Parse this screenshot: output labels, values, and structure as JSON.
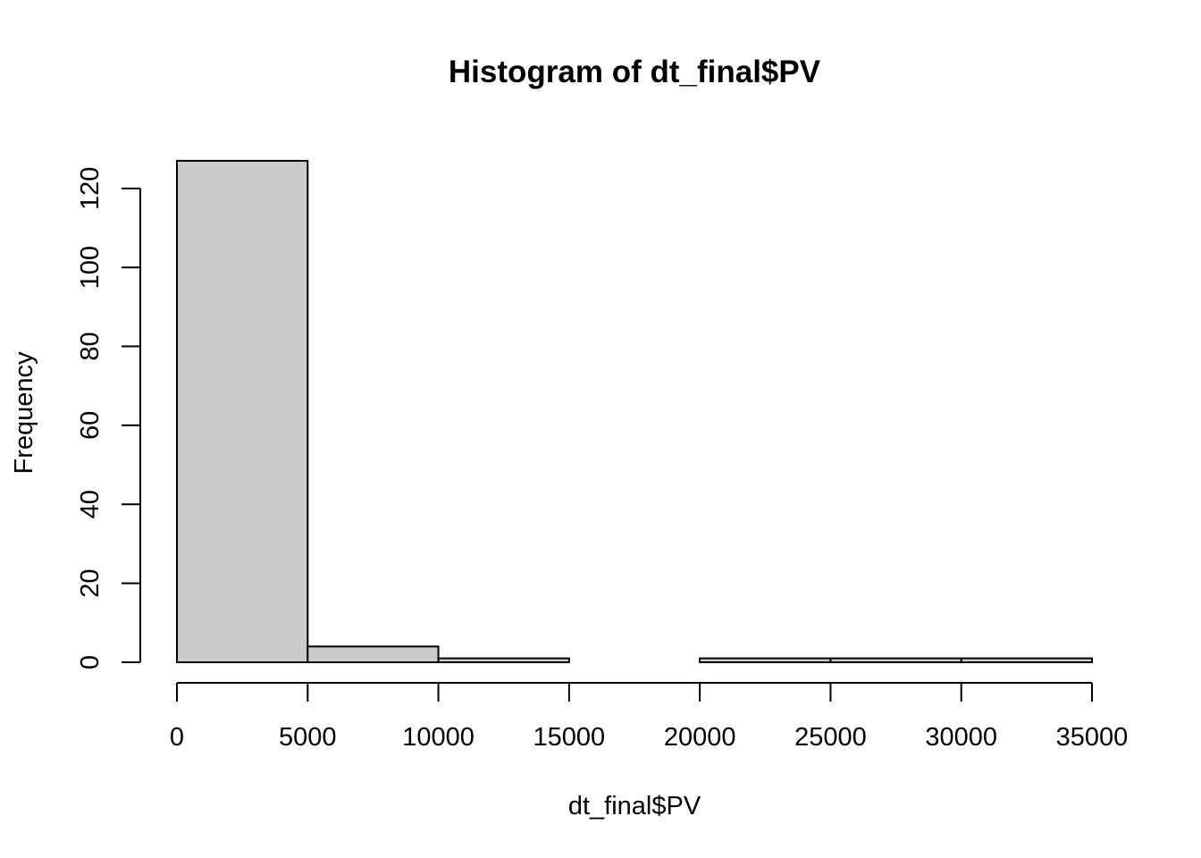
{
  "chart_data": {
    "type": "bar",
    "title": "Histogram of dt_final$PV",
    "xlabel": "dt_final$PV",
    "ylabel": "Frequency",
    "breaks": [
      0,
      5000,
      10000,
      15000,
      20000,
      25000,
      30000,
      35000
    ],
    "counts": [
      127,
      4,
      1,
      0,
      1,
      1,
      1
    ],
    "xlim": [
      0,
      35000
    ],
    "ylim": [
      0,
      127
    ],
    "x_ticks": [
      0,
      5000,
      10000,
      15000,
      20000,
      25000,
      30000,
      35000
    ],
    "y_ticks": [
      0,
      20,
      40,
      60,
      80,
      100,
      120
    ],
    "bar_color": "#cbcbcb",
    "grid": false
  }
}
